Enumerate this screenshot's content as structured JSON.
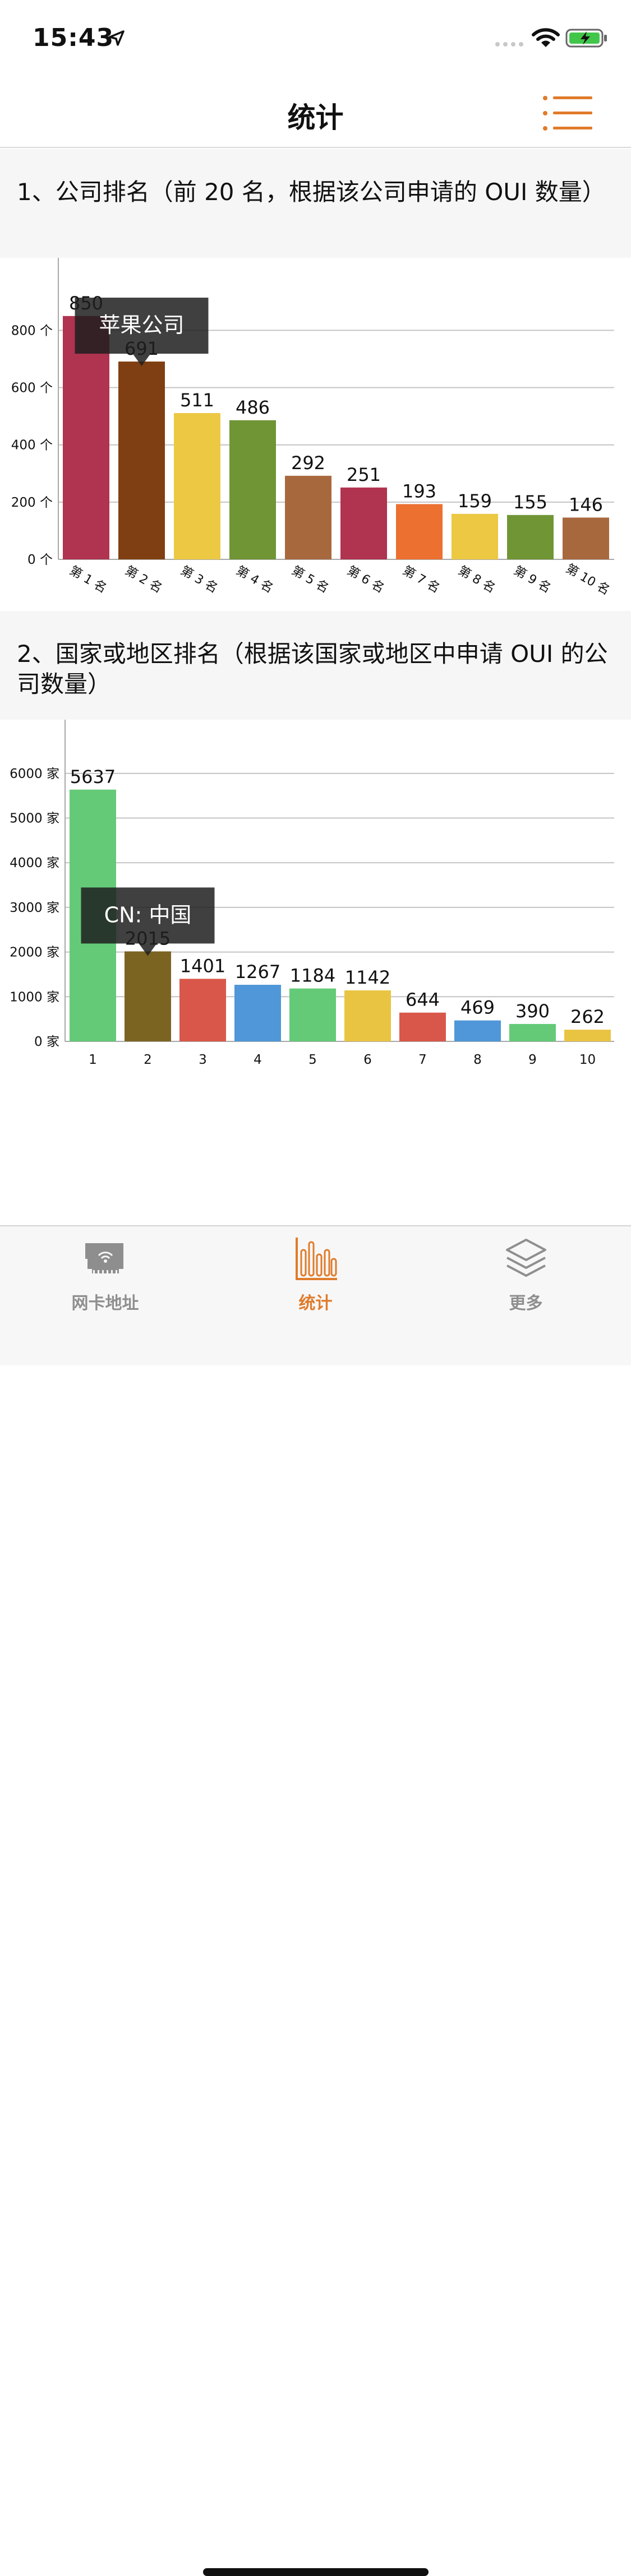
{
  "status": {
    "time": "15:43"
  },
  "nav": {
    "title": "统计"
  },
  "section1": {
    "title": "1、公司排名（前 20 名，根据该公司申请的 OUI 数量）"
  },
  "section2": {
    "title": "2、国家或地区排名（根据该国家或地区中申请 OUI 的公司数量）"
  },
  "chart_data": [
    {
      "type": "bar",
      "categories": [
        "第 1 名",
        "第 2 名",
        "第 3 名",
        "第 4 名",
        "第 5 名",
        "第 6 名",
        "第 7 名",
        "第 8 名",
        "第 9 名",
        "第 10 名"
      ],
      "values": [
        850,
        691,
        511,
        486,
        292,
        251,
        193,
        159,
        155,
        146
      ],
      "colors": [
        "#b03350",
        "#7f3f12",
        "#ecc843",
        "#6f9535",
        "#a8683e",
        "#b03350",
        "#ec7030",
        "#ecc843",
        "#6f9535",
        "#a8683e"
      ],
      "yticks": [
        "0 个",
        "200 个",
        "400 个",
        "600 个",
        "800 个"
      ],
      "ytick_values": [
        0,
        200,
        400,
        600,
        800
      ],
      "ylim": [
        0,
        975
      ],
      "grid": true,
      "tooltip": {
        "text": "苹果公司",
        "category_index": 1
      }
    },
    {
      "type": "bar",
      "categories": [
        "1",
        "2",
        "3",
        "4",
        "5",
        "6",
        "7",
        "8",
        "9",
        "10"
      ],
      "values": [
        5637,
        2015,
        1401,
        1267,
        1184,
        1142,
        644,
        469,
        390,
        262
      ],
      "colors": [
        "#64ca78",
        "#7b6422",
        "#d9574a",
        "#4f97d8",
        "#64ca78",
        "#e9c443",
        "#d9574a",
        "#4f97d8",
        "#64ca78",
        "#e9c443"
      ],
      "yticks": [
        "0 家",
        "1000 家",
        "2000 家",
        "3000 家",
        "4000 家",
        "5000 家",
        "6000 家"
      ],
      "ytick_values": [
        0,
        1000,
        2000,
        3000,
        4000,
        5000,
        6000
      ],
      "ylim": [
        0,
        6450
      ],
      "grid": true,
      "tooltip": {
        "text": "CN: 中国",
        "category_index": 1
      }
    }
  ],
  "tabbar": {
    "items": [
      {
        "label": "网卡地址",
        "icon": "network-card-icon",
        "active": false
      },
      {
        "label": "统计",
        "icon": "bar-chart-icon",
        "active": true
      },
      {
        "label": "更多",
        "icon": "layers-icon",
        "active": false
      }
    ],
    "active_color": "#e07b2a",
    "inactive_color": "#8e8e8e"
  }
}
